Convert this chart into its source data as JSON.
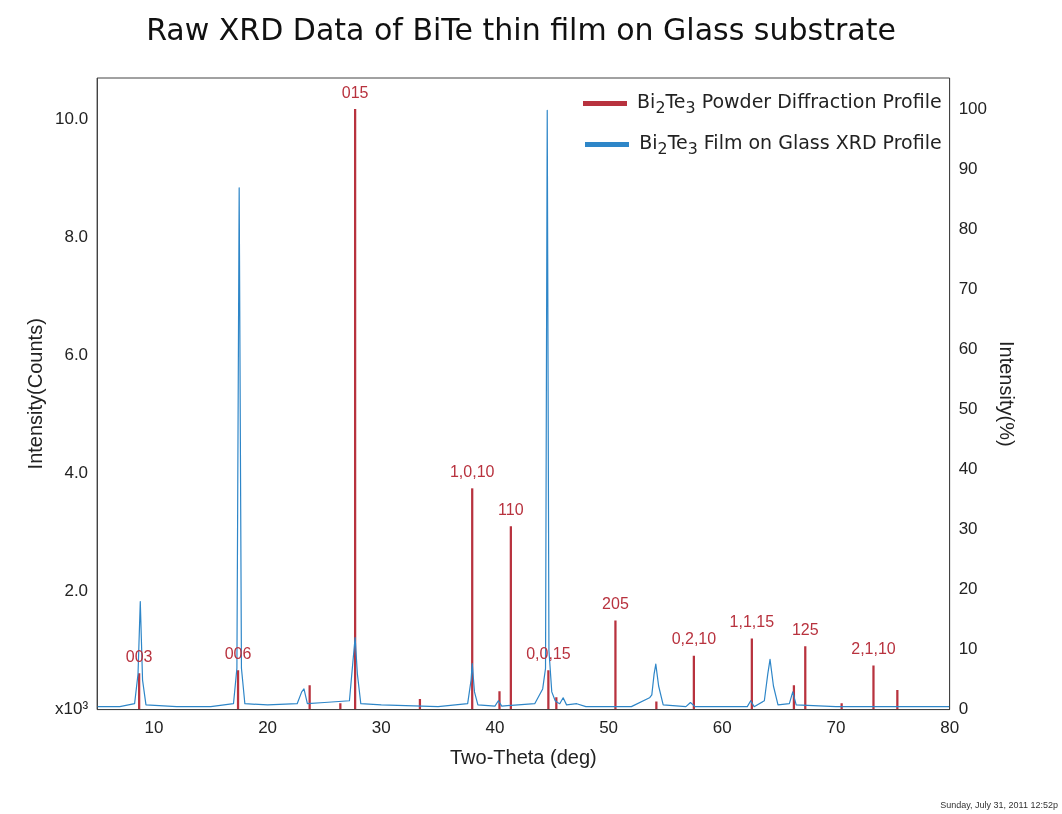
{
  "chart_data": {
    "type": "line",
    "title": "Raw XRD Data of BiTe thin film on Glass substrate",
    "xlabel": "Two-Theta (deg)",
    "ylabel": "Intensity(Counts)",
    "y2label": "Intensity(%)",
    "xlim": [
      5,
      80
    ],
    "xticks": [
      10,
      20,
      30,
      40,
      50,
      60,
      70,
      80
    ],
    "ylim": [
      0,
      10.7
    ],
    "yticks": [
      {
        "value": 0,
        "label": "x10³"
      },
      {
        "value": 2,
        "label": "2.0"
      },
      {
        "value": 4,
        "label": "4.0"
      },
      {
        "value": 6,
        "label": "6.0"
      },
      {
        "value": 8,
        "label": "8.0"
      },
      {
        "value": 10,
        "label": "10.0"
      }
    ],
    "y2lim": [
      0,
      105.2
    ],
    "y2ticks": [
      0,
      10,
      20,
      30,
      40,
      50,
      60,
      70,
      80,
      90,
      100
    ],
    "grid": false,
    "legend": "top right",
    "marker": "none",
    "line_style": "solid",
    "series": [
      {
        "name": "Bi$_{2}$Te$_{3}$ Powder Diffraction Profile",
        "type": "bar",
        "axis": "y2",
        "color": "#b8323e",
        "x": [
          8.7,
          17.4,
          23.7,
          26.4,
          27.7,
          33.4,
          38.0,
          40.4,
          41.4,
          44.7,
          45.4,
          50.6,
          54.2,
          57.5,
          62.6,
          66.3,
          67.3,
          70.5,
          73.3,
          75.4
        ],
        "values": [
          6,
          6.5,
          4,
          1,
          100,
          1.7,
          36.8,
          3,
          30.5,
          6.5,
          2,
          14.8,
          1.3,
          8.9,
          11.8,
          4,
          10.5,
          1,
          7.3,
          3.2
        ]
      },
      {
        "name": "Bi$_{2}$Te$_{3}$ Film on Glass XRD Profile",
        "axis": "y",
        "color": "#2e86c8",
        "x": [
          5,
          7,
          8.3,
          8.6,
          8.8,
          9.0,
          9.3,
          12,
          15,
          17.0,
          17.3,
          17.5,
          17.7,
          18.0,
          20,
          22.6,
          23.0,
          23.2,
          23.5,
          25,
          27.2,
          27.5,
          27.7,
          27.9,
          28.2,
          30,
          35,
          37.6,
          37.9,
          38.0,
          38.2,
          38.5,
          40.0,
          40.3,
          40.6,
          43.5,
          44.2,
          44.45,
          44.6,
          44.75,
          45.0,
          45.3,
          45.5,
          45.7,
          46.0,
          46.3,
          47.2,
          48,
          52,
          53.6,
          53.8,
          54.0,
          54.15,
          54.4,
          54.8,
          56.8,
          57.2,
          57.6,
          62.2,
          62.5,
          62.8,
          63.7,
          64.0,
          64.2,
          64.5,
          64.9,
          65.9,
          66.2,
          66.5,
          70,
          75,
          80
        ],
        "values": [
          0.05,
          0.05,
          0.1,
          0.6,
          1.83,
          0.5,
          0.08,
          0.05,
          0.05,
          0.1,
          0.7,
          8.84,
          0.7,
          0.1,
          0.08,
          0.1,
          0.3,
          0.35,
          0.1,
          0.12,
          0.15,
          0.8,
          1.22,
          0.6,
          0.1,
          0.08,
          0.05,
          0.1,
          0.5,
          0.78,
          0.3,
          0.08,
          0.06,
          0.15,
          0.06,
          0.1,
          0.35,
          0.7,
          10.15,
          1.0,
          0.3,
          0.15,
          0.12,
          0.1,
          0.2,
          0.08,
          0.1,
          0.05,
          0.05,
          0.2,
          0.25,
          0.6,
          0.77,
          0.4,
          0.08,
          0.05,
          0.12,
          0.05,
          0.05,
          0.15,
          0.05,
          0.15,
          0.6,
          0.85,
          0.4,
          0.08,
          0.1,
          0.3,
          0.08,
          0.05,
          0.05,
          0.05
        ]
      }
    ],
    "annotations": [
      {
        "text": "003",
        "x": 8.7,
        "y": 0.61
      },
      {
        "text": "006",
        "x": 17.4,
        "y": 0.66
      },
      {
        "text": "015",
        "x": 27.7,
        "y": 10.17
      },
      {
        "text": "1,0,10",
        "x": 38.0,
        "y": 3.74
      },
      {
        "text": "110",
        "x": 41.4,
        "y": 3.1
      },
      {
        "text": "0,0,15",
        "x": 44.7,
        "y": 0.66
      },
      {
        "text": "205",
        "x": 50.6,
        "y": 1.51
      },
      {
        "text": "0,2,10",
        "x": 57.5,
        "y": 0.91
      },
      {
        "text": "1,1,15",
        "x": 62.6,
        "y": 1.2
      },
      {
        "text": "125",
        "x": 67.3,
        "y": 1.07
      },
      {
        "text": "2,1,10",
        "x": 73.3,
        "y": 0.74
      },
      "Sunday, July 31, 2011 12:52p"
    ]
  }
}
